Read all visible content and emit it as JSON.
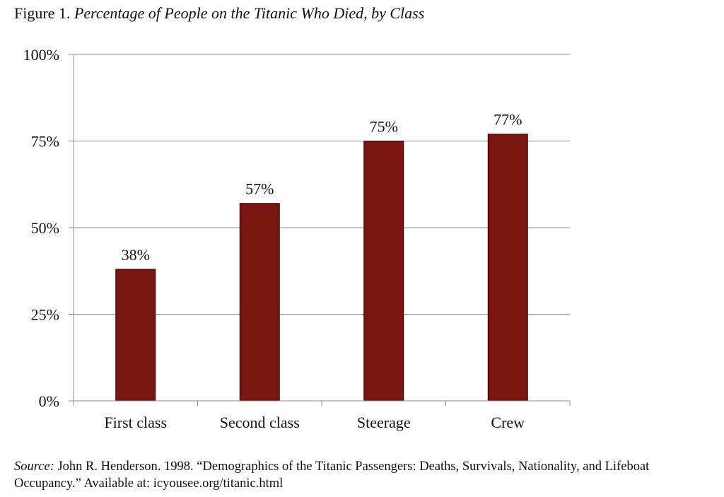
{
  "figure": {
    "label": "Figure 1.",
    "title": "Percentage of People on the Titanic Who Died, by Class"
  },
  "chart_data": {
    "type": "bar",
    "categories": [
      "First class",
      "Second class",
      "Steerage",
      "Crew"
    ],
    "values": [
      38,
      57,
      75,
      77
    ],
    "value_labels": [
      "38%",
      "57%",
      "75%",
      "77%"
    ],
    "ylim": [
      0,
      100
    ],
    "yticks": [
      0,
      25,
      50,
      75,
      100
    ],
    "ytick_labels": [
      "0%",
      "25%",
      "50%",
      "75%",
      "100%"
    ],
    "xlabel": "",
    "ylabel": "",
    "grid": true,
    "legend": "none",
    "bar_color": "#7a150f"
  },
  "source": {
    "label": "Source:",
    "text": "John R. Henderson. 1998. “Demographics of the Titanic Passengers: Deaths, Survivals, Nationality, and Lifeboat Occupancy.” Available at: icyousee.org/titanic.html"
  }
}
